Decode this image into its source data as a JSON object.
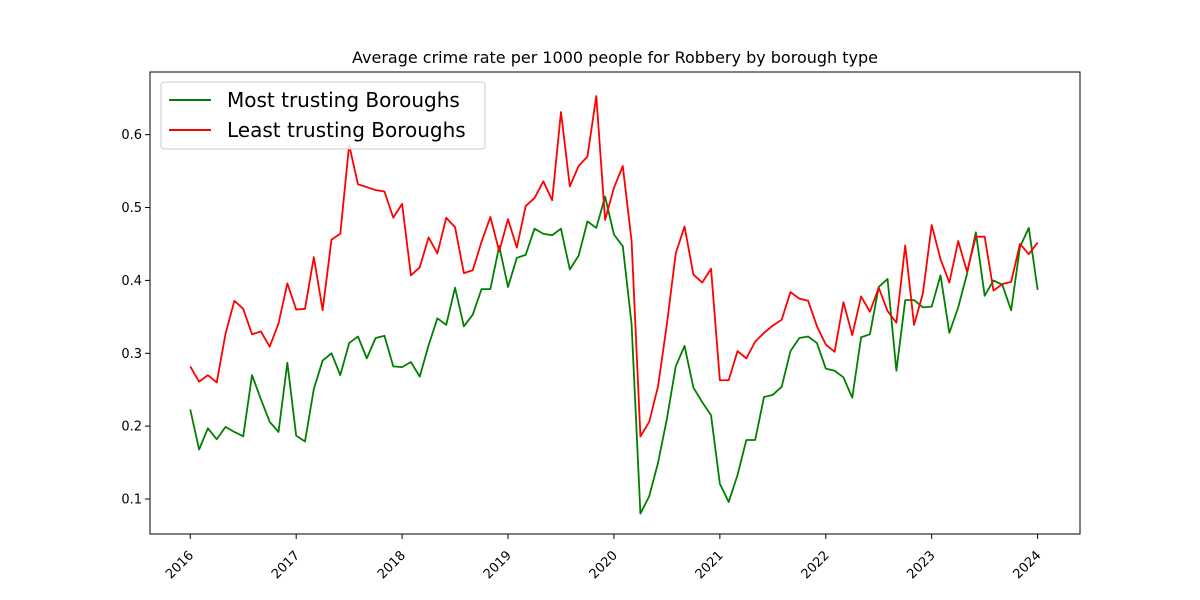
{
  "chart_data": {
    "type": "line",
    "title": "Average crime rate per 1000 people for Robbery by borough type",
    "xlabel": "",
    "ylabel": "",
    "xlim": [
      2015.62,
      2024.4
    ],
    "ylim": [
      0.052,
      0.686
    ],
    "x_ticks": [
      {
        "value": 2016,
        "label": "2016"
      },
      {
        "value": 2017,
        "label": "2017"
      },
      {
        "value": 2018,
        "label": "2018"
      },
      {
        "value": 2019,
        "label": "2019"
      },
      {
        "value": 2020,
        "label": "2020"
      },
      {
        "value": 2021,
        "label": "2021"
      },
      {
        "value": 2022,
        "label": "2022"
      },
      {
        "value": 2023,
        "label": "2023"
      },
      {
        "value": 2024,
        "label": "2024"
      }
    ],
    "y_ticks": [
      {
        "value": 0.1,
        "label": "0.1"
      },
      {
        "value": 0.2,
        "label": "0.2"
      },
      {
        "value": 0.3,
        "label": "0.3"
      },
      {
        "value": 0.4,
        "label": "0.4"
      },
      {
        "value": 0.5,
        "label": "0.5"
      },
      {
        "value": 0.6,
        "label": "0.6"
      }
    ],
    "grid": false,
    "legend": "upper-left",
    "x_start": "2016-01",
    "x_step": "1 month",
    "series": [
      {
        "name": "Most trusting Boroughs",
        "color": "#008000",
        "values": [
          0.223,
          0.168,
          0.197,
          0.182,
          0.199,
          0.192,
          0.186,
          0.27,
          0.237,
          0.206,
          0.192,
          0.287,
          0.187,
          0.179,
          0.251,
          0.29,
          0.3,
          0.27,
          0.314,
          0.323,
          0.293,
          0.321,
          0.324,
          0.282,
          0.281,
          0.288,
          0.268,
          0.311,
          0.348,
          0.339,
          0.39,
          0.337,
          0.353,
          0.388,
          0.388,
          0.447,
          0.391,
          0.431,
          0.435,
          0.471,
          0.464,
          0.462,
          0.471,
          0.415,
          0.434,
          0.481,
          0.472,
          0.515,
          0.463,
          0.447,
          0.34,
          0.08,
          0.104,
          0.15,
          0.21,
          0.282,
          0.31,
          0.253,
          0.233,
          0.215,
          0.121,
          0.096,
          0.133,
          0.181,
          0.181,
          0.24,
          0.243,
          0.254,
          0.303,
          0.321,
          0.323,
          0.314,
          0.279,
          0.276,
          0.267,
          0.239,
          0.322,
          0.326,
          0.391,
          0.402,
          0.276,
          0.373,
          0.373,
          0.363,
          0.364,
          0.407,
          0.328,
          0.363,
          0.409,
          0.466,
          0.379,
          0.4,
          0.394,
          0.359,
          0.446,
          0.472,
          0.387
        ]
      },
      {
        "name": "Least trusting Boroughs",
        "color": "#ff0000",
        "values": [
          0.282,
          0.261,
          0.27,
          0.26,
          0.327,
          0.372,
          0.361,
          0.326,
          0.33,
          0.309,
          0.341,
          0.396,
          0.36,
          0.361,
          0.432,
          0.359,
          0.456,
          0.464,
          0.586,
          0.532,
          0.528,
          0.524,
          0.522,
          0.486,
          0.505,
          0.407,
          0.418,
          0.459,
          0.437,
          0.486,
          0.473,
          0.41,
          0.414,
          0.453,
          0.487,
          0.44,
          0.484,
          0.445,
          0.502,
          0.513,
          0.536,
          0.51,
          0.631,
          0.529,
          0.557,
          0.57,
          0.653,
          0.483,
          0.527,
          0.557,
          0.454,
          0.186,
          0.206,
          0.255,
          0.34,
          0.437,
          0.474,
          0.408,
          0.397,
          0.416,
          0.263,
          0.263,
          0.303,
          0.293,
          0.316,
          0.328,
          0.338,
          0.346,
          0.384,
          0.375,
          0.372,
          0.337,
          0.312,
          0.302,
          0.37,
          0.325,
          0.378,
          0.357,
          0.39,
          0.358,
          0.342,
          0.448,
          0.339,
          0.382,
          0.476,
          0.429,
          0.397,
          0.454,
          0.412,
          0.46,
          0.46,
          0.386,
          0.395,
          0.398,
          0.45,
          0.436,
          0.452
        ]
      }
    ]
  }
}
